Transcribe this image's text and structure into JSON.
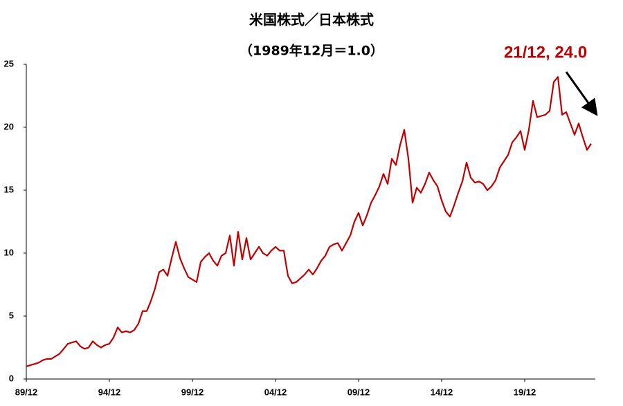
{
  "chart_data": {
    "type": "line",
    "title": "米国株式／日本株式",
    "subtitle": "（1989年12月＝1.0）",
    "annotation": "21/12, 24.0",
    "annotation_color": "#c00000",
    "color": "#c00000",
    "categories": [
      "89/12",
      null,
      null,
      null,
      null,
      null,
      null,
      null,
      null,
      null,
      null,
      null,
      null,
      null,
      null,
      null,
      null,
      null,
      null,
      null,
      "94/12",
      null,
      null,
      null,
      null,
      null,
      null,
      null,
      null,
      null,
      null,
      null,
      null,
      null,
      null,
      null,
      null,
      null,
      null,
      null,
      "99/12",
      null,
      null,
      null,
      null,
      null,
      null,
      null,
      null,
      null,
      null,
      null,
      null,
      null,
      null,
      null,
      null,
      null,
      null,
      null,
      "04/12",
      null,
      null,
      null,
      null,
      null,
      null,
      null,
      null,
      null,
      null,
      null,
      null,
      null,
      null,
      null,
      null,
      null,
      null,
      null,
      "09/12",
      null,
      null,
      null,
      null,
      null,
      null,
      null,
      null,
      null,
      null,
      null,
      null,
      null,
      null,
      null,
      null,
      null,
      null,
      null,
      "14/12",
      null,
      null,
      null,
      null,
      null,
      null,
      null,
      null,
      null,
      null,
      null,
      null,
      null,
      null,
      null,
      null,
      null,
      null,
      null,
      "19/12",
      null,
      null,
      null,
      null,
      null,
      null,
      null,
      null,
      null,
      null,
      null,
      null,
      null,
      null,
      null,
      null
    ],
    "values": [
      1.0,
      1.1,
      1.2,
      1.3,
      1.5,
      1.6,
      1.6,
      1.8,
      2.0,
      2.4,
      2.8,
      2.9,
      3.0,
      2.6,
      2.4,
      2.5,
      3.0,
      2.7,
      2.5,
      2.7,
      2.8,
      3.3,
      4.1,
      3.7,
      3.8,
      3.7,
      3.9,
      4.4,
      5.4,
      5.4,
      6.2,
      7.2,
      8.5,
      8.7,
      8.2,
      9.6,
      10.9,
      9.6,
      8.8,
      8.1,
      7.9,
      7.7,
      9.3,
      9.7,
      10.0,
      9.4,
      9.0,
      9.8,
      10.0,
      11.4,
      9.0,
      11.7,
      9.5,
      11.2,
      9.5,
      10.0,
      10.5,
      10.0,
      9.8,
      10.2,
      10.5,
      10.2,
      10.2,
      8.2,
      7.6,
      7.7,
      8.0,
      8.3,
      8.7,
      8.3,
      8.8,
      9.4,
      9.8,
      10.5,
      10.7,
      10.8,
      10.2,
      10.8,
      11.4,
      12.5,
      13.2,
      12.2,
      13.0,
      14.0,
      14.6,
      15.3,
      16.3,
      15.5,
      17.5,
      17.0,
      18.6,
      19.8,
      17.5,
      14.0,
      15.2,
      14.8,
      15.5,
      16.4,
      15.8,
      15.3,
      14.2,
      13.3,
      12.9,
      13.8,
      14.8,
      15.7,
      17.2,
      16.0,
      15.6,
      15.7,
      15.5,
      15.0,
      15.3,
      15.8,
      16.8,
      17.3,
      17.8,
      18.8,
      19.2,
      19.7,
      18.2,
      19.8,
      22.1,
      20.8,
      20.9,
      21.0,
      21.3,
      23.6,
      24.0,
      21.0,
      21.2,
      20.3,
      19.4,
      20.3,
      19.2,
      18.2,
      18.7
    ],
    "ylim": [
      0,
      25
    ],
    "yticks": [
      0,
      5,
      10,
      15,
      20,
      25
    ],
    "grid": false
  }
}
